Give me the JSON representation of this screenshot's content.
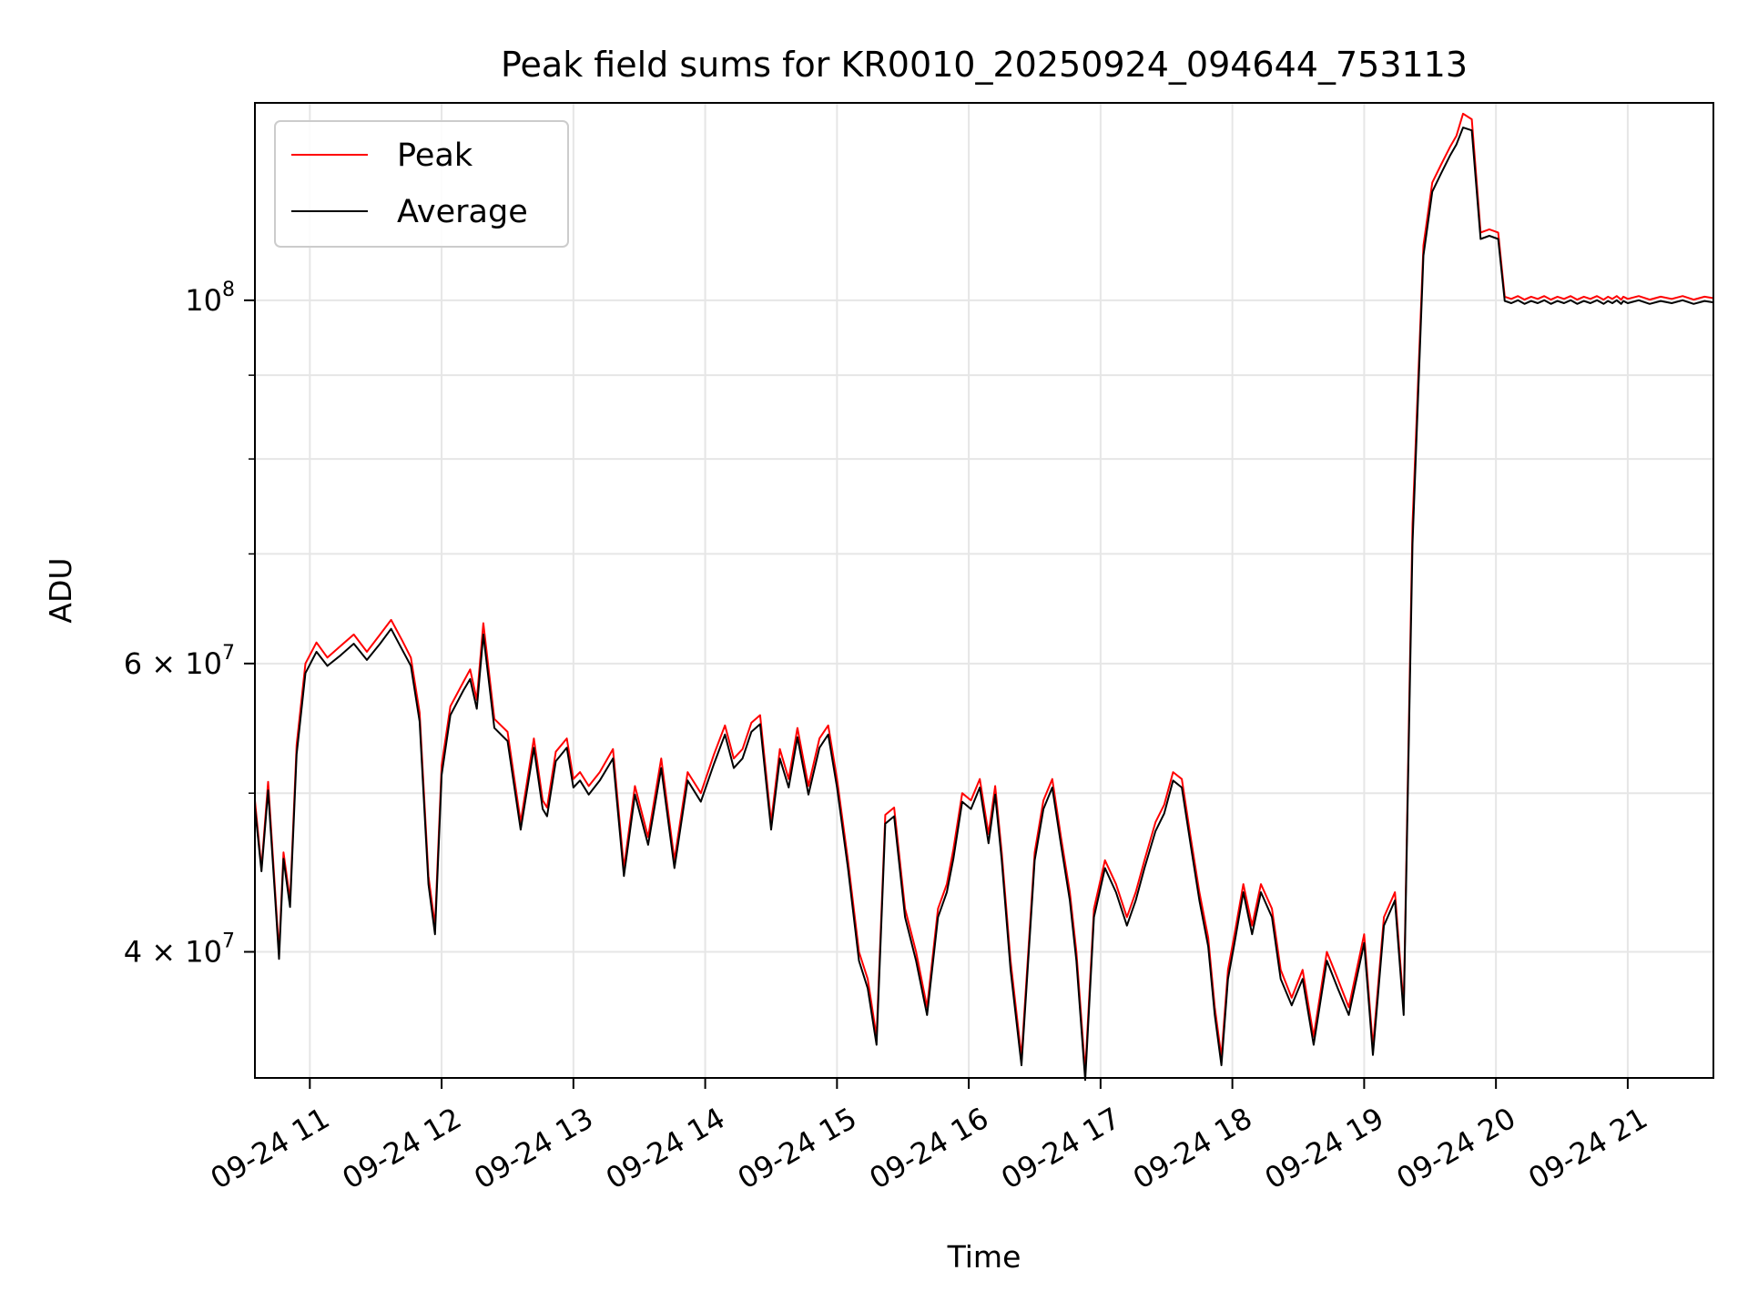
{
  "chart_data": {
    "type": "line",
    "title": "Peak field sums for KR0010_20250924_094644_753113",
    "xlabel": "Time",
    "ylabel": "ADU",
    "xlim": [
      "09-24 10:35",
      "09-24 21:39"
    ],
    "ylim": [
      33500000,
      132000000
    ],
    "yscale": "log",
    "grid": true,
    "legend_position": "upper-left",
    "x_ticks": [
      "09-24 11",
      "09-24 12",
      "09-24 13",
      "09-24 14",
      "09-24 15",
      "09-24 16",
      "09-24 17",
      "09-24 18",
      "09-24 19",
      "09-24 20",
      "09-24 21"
    ],
    "y_ticks": [
      {
        "value": 40000000,
        "label": "4 × 10^7"
      },
      {
        "value": 60000000,
        "label": "6 × 10^7"
      },
      {
        "value": 100000000,
        "label": "10^8"
      }
    ],
    "series": [
      {
        "name": "Peak",
        "color": "#ff0000",
        "x": [
          "09-24 10:35",
          "09-24 10:38",
          "09-24 10:41",
          "09-24 10:44",
          "09-24 10:46",
          "09-24 10:48",
          "09-24 10:51",
          "09-24 10:54",
          "09-24 10:58",
          "09-24 11:03",
          "09-24 11:08",
          "09-24 11:14",
          "09-24 11:20",
          "09-24 11:26",
          "09-24 11:32",
          "09-24 11:37",
          "09-24 11:42",
          "09-24 11:46",
          "09-24 11:50",
          "09-24 11:54",
          "09-24 11:57",
          "09-24 12:00",
          "09-24 12:04",
          "09-24 12:07",
          "09-24 12:10",
          "09-24 12:13",
          "09-24 12:16",
          "09-24 12:19",
          "09-24 12:24",
          "09-24 12:30",
          "09-24 12:36",
          "09-24 12:42",
          "09-24 12:46",
          "09-24 12:48",
          "09-24 12:52",
          "09-24 12:57",
          "09-24 13:00",
          "09-24 13:03",
          "09-24 13:07",
          "09-24 13:12",
          "09-24 13:18",
          "09-24 13:23",
          "09-24 13:28",
          "09-24 13:34",
          "09-24 13:40",
          "09-24 13:46",
          "09-24 13:52",
          "09-24 13:58",
          "09-24 14:04",
          "09-24 14:09",
          "09-24 14:13",
          "09-24 14:17",
          "09-24 14:21",
          "09-24 14:25",
          "09-24 14:30",
          "09-24 14:34",
          "09-24 14:38",
          "09-24 14:42",
          "09-24 14:47",
          "09-24 14:52",
          "09-24 14:56",
          "09-24 15:00",
          "09-24 15:05",
          "09-24 15:10",
          "09-24 15:14",
          "09-24 15:18",
          "09-24 15:22",
          "09-24 15:26",
          "09-24 15:31",
          "09-24 15:36",
          "09-24 15:41",
          "09-24 15:46",
          "09-24 15:50",
          "09-24 15:53",
          "09-24 15:57",
          "09-24 16:01",
          "09-24 16:05",
          "09-24 16:09",
          "09-24 16:12",
          "09-24 16:15",
          "09-24 16:19",
          "09-24 16:24",
          "09-24 16:30",
          "09-24 16:34",
          "09-24 16:38",
          "09-24 16:42",
          "09-24 16:46",
          "09-24 16:49",
          "09-24 16:53",
          "09-24 16:57",
          "09-24 17:02",
          "09-24 17:07",
          "09-24 17:12",
          "09-24 17:16",
          "09-24 17:20",
          "09-24 17:25",
          "09-24 17:29",
          "09-24 17:33",
          "09-24 17:37",
          "09-24 17:41",
          "09-24 17:45",
          "09-24 17:49",
          "09-24 17:52",
          "09-24 17:55",
          "09-24 17:58",
          "09-24 18:01",
          "09-24 18:05",
          "09-24 18:09",
          "09-24 18:13",
          "09-24 18:18",
          "09-24 18:22",
          "09-24 18:27",
          "09-24 18:32",
          "09-24 18:37",
          "09-24 18:43",
          "09-24 18:48",
          "09-24 18:53",
          "09-24 19:00",
          "09-24 19:04",
          "09-24 19:09",
          "09-24 19:14",
          "09-24 19:18",
          "09-24 19:22",
          "09-24 19:27",
          "09-24 19:31",
          "09-24 19:35",
          "09-24 19:39",
          "09-24 19:42",
          "09-24 19:45",
          "09-24 19:49",
          "09-24 19:53",
          "09-24 19:57",
          "09-24 20:01",
          "09-24 20:04",
          "09-24 20:07",
          "09-24 20:10",
          "09-24 20:13",
          "09-24 20:16",
          "09-24 20:19",
          "09-24 20:22",
          "09-24 20:25",
          "09-24 20:28",
          "09-24 20:31",
          "09-24 20:34",
          "09-24 20:37",
          "09-24 20:40",
          "09-24 20:43",
          "09-24 20:46",
          "09-24 20:49",
          "09-24 20:51",
          "09-24 20:53",
          "09-24 20:55",
          "09-24 20:57",
          "09-24 20:58",
          "09-24 21:00",
          "09-24 21:05",
          "09-24 21:10",
          "09-24 21:15",
          "09-24 21:20",
          "09-24 21:25",
          "09-24 21:30",
          "09-24 21:35",
          "09-24 21:39"
        ],
        "y": [
          49500000,
          45000000,
          50800000,
          44000000,
          40000000,
          46000000,
          43000000,
          53500000,
          60000000,
          61800000,
          60500000,
          61500000,
          62500000,
          61000000,
          62500000,
          63800000,
          62000000,
          60500000,
          56000000,
          44500000,
          41500000,
          52000000,
          56500000,
          57500000,
          58500000,
          59500000,
          57000000,
          63500000,
          55500000,
          54500000,
          48000000,
          54000000,
          49500000,
          49000000,
          53000000,
          54000000,
          51000000,
          51500000,
          50500000,
          51500000,
          53200000,
          45000000,
          50500000,
          47000000,
          52500000,
          45500000,
          51500000,
          50000000,
          52800000,
          55000000,
          52500000,
          53200000,
          55200000,
          55800000,
          48000000,
          53200000,
          51000000,
          54800000,
          50500000,
          54000000,
          55000000,
          51000000,
          45500000,
          40000000,
          38500000,
          35500000,
          48500000,
          49000000,
          42500000,
          40000000,
          37000000,
          42500000,
          44000000,
          46200000,
          50000000,
          49500000,
          51000000,
          47200000,
          50500000,
          46000000,
          39500000,
          34500000,
          46000000,
          49500000,
          51000000,
          47000000,
          43500000,
          40000000,
          33800000,
          42500000,
          45500000,
          44000000,
          42000000,
          43500000,
          45500000,
          48000000,
          49200000,
          51500000,
          51000000,
          47000000,
          43500000,
          40800000,
          37000000,
          34500000,
          39000000,
          41000000,
          44000000,
          41500000,
          44000000,
          42500000,
          39000000,
          37500000,
          39000000,
          35500000,
          40000000,
          38500000,
          37000000,
          41000000,
          35000000,
          42000000,
          43500000,
          37000000,
          73000000,
          108000000,
          118000000,
          121000000,
          124000000,
          126000000,
          130000000,
          129000000,
          110000000,
          110500000,
          110000000,
          100500000,
          100200000,
          100600000,
          100100000,
          100500000,
          100200000,
          100600000,
          100100000,
          100500000,
          100200000,
          100600000,
          100100000,
          100500000,
          100200000,
          100600000,
          100100000,
          100500000,
          100200000,
          100600000,
          100100000,
          100500000,
          100200000,
          100600000,
          100100000,
          100500000,
          100200000,
          100600000,
          100100000,
          100500000,
          100300000
        ]
      },
      {
        "name": "Average",
        "color": "#000000",
        "x": [
          "09-24 10:35",
          "09-24 10:38",
          "09-24 10:41",
          "09-24 10:44",
          "09-24 10:46",
          "09-24 10:48",
          "09-24 10:51",
          "09-24 10:54",
          "09-24 10:58",
          "09-24 11:03",
          "09-24 11:08",
          "09-24 11:14",
          "09-24 11:20",
          "09-24 11:26",
          "09-24 11:32",
          "09-24 11:37",
          "09-24 11:42",
          "09-24 11:46",
          "09-24 11:50",
          "09-24 11:54",
          "09-24 11:57",
          "09-24 12:00",
          "09-24 12:04",
          "09-24 12:07",
          "09-24 12:10",
          "09-24 12:13",
          "09-24 12:16",
          "09-24 12:19",
          "09-24 12:24",
          "09-24 12:30",
          "09-24 12:36",
          "09-24 12:42",
          "09-24 12:46",
          "09-24 12:48",
          "09-24 12:52",
          "09-24 12:57",
          "09-24 13:00",
          "09-24 13:03",
          "09-24 13:07",
          "09-24 13:12",
          "09-24 13:18",
          "09-24 13:23",
          "09-24 13:28",
          "09-24 13:34",
          "09-24 13:40",
          "09-24 13:46",
          "09-24 13:52",
          "09-24 13:58",
          "09-24 14:04",
          "09-24 14:09",
          "09-24 14:13",
          "09-24 14:17",
          "09-24 14:21",
          "09-24 14:25",
          "09-24 14:30",
          "09-24 14:34",
          "09-24 14:38",
          "09-24 14:42",
          "09-24 14:47",
          "09-24 14:52",
          "09-24 14:56",
          "09-24 15:00",
          "09-24 15:05",
          "09-24 15:10",
          "09-24 15:14",
          "09-24 15:18",
          "09-24 15:22",
          "09-24 15:26",
          "09-24 15:31",
          "09-24 15:36",
          "09-24 15:41",
          "09-24 15:46",
          "09-24 15:50",
          "09-24 15:53",
          "09-24 15:57",
          "09-24 16:01",
          "09-24 16:05",
          "09-24 16:09",
          "09-24 16:12",
          "09-24 16:15",
          "09-24 16:19",
          "09-24 16:24",
          "09-24 16:30",
          "09-24 16:34",
          "09-24 16:38",
          "09-24 16:42",
          "09-24 16:46",
          "09-24 16:49",
          "09-24 16:53",
          "09-24 16:57",
          "09-24 17:02",
          "09-24 17:07",
          "09-24 17:12",
          "09-24 17:16",
          "09-24 17:20",
          "09-24 17:25",
          "09-24 17:29",
          "09-24 17:33",
          "09-24 17:37",
          "09-24 17:41",
          "09-24 17:45",
          "09-24 17:49",
          "09-24 17:52",
          "09-24 17:55",
          "09-24 17:58",
          "09-24 18:01",
          "09-24 18:05",
          "09-24 18:09",
          "09-24 18:13",
          "09-24 18:18",
          "09-24 18:22",
          "09-24 18:27",
          "09-24 18:32",
          "09-24 18:37",
          "09-24 18:43",
          "09-24 18:48",
          "09-24 18:53",
          "09-24 19:00",
          "09-24 19:04",
          "09-24 19:09",
          "09-24 19:14",
          "09-24 19:18",
          "09-24 19:22",
          "09-24 19:27",
          "09-24 19:31",
          "09-24 19:35",
          "09-24 19:39",
          "09-24 19:42",
          "09-24 19:45",
          "09-24 19:49",
          "09-24 19:53",
          "09-24 19:57",
          "09-24 20:01",
          "09-24 20:04",
          "09-24 20:07",
          "09-24 20:10",
          "09-24 20:13",
          "09-24 20:16",
          "09-24 20:19",
          "09-24 20:22",
          "09-24 20:25",
          "09-24 20:28",
          "09-24 20:31",
          "09-24 20:34",
          "09-24 20:37",
          "09-24 20:40",
          "09-24 20:43",
          "09-24 20:46",
          "09-24 20:49",
          "09-24 20:51",
          "09-24 20:53",
          "09-24 20:55",
          "09-24 20:57",
          "09-24 20:58",
          "09-24 21:00",
          "09-24 21:05",
          "09-24 21:10",
          "09-24 21:15",
          "09-24 21:20",
          "09-24 21:25",
          "09-24 21:30",
          "09-24 21:35",
          "09-24 21:39"
        ],
        "y": [
          49000000,
          44800000,
          50200000,
          43600000,
          39600000,
          45600000,
          42600000,
          52800000,
          59200000,
          61000000,
          59800000,
          60700000,
          61700000,
          60300000,
          61700000,
          63000000,
          61200000,
          59800000,
          55300000,
          44000000,
          41000000,
          51300000,
          55800000,
          56800000,
          57800000,
          58700000,
          56300000,
          62500000,
          54800000,
          53800000,
          47500000,
          53300000,
          48900000,
          48400000,
          52300000,
          53300000,
          50400000,
          50900000,
          49900000,
          50900000,
          52500000,
          44500000,
          49900000,
          46500000,
          51800000,
          45000000,
          50900000,
          49400000,
          52100000,
          54300000,
          51800000,
          52500000,
          54500000,
          55100000,
          47500000,
          52500000,
          50400000,
          54100000,
          49900000,
          53300000,
          54300000,
          50400000,
          45000000,
          39500000,
          38000000,
          35100000,
          47900000,
          48400000,
          42000000,
          39500000,
          36600000,
          42000000,
          43500000,
          45600000,
          49400000,
          48900000,
          50400000,
          46600000,
          49900000,
          45500000,
          39000000,
          34100000,
          45500000,
          48900000,
          50400000,
          46500000,
          43000000,
          39500000,
          33400000,
          42000000,
          45000000,
          43500000,
          41500000,
          43000000,
          45000000,
          47400000,
          48600000,
          50900000,
          50400000,
          46500000,
          43000000,
          40300000,
          36600000,
          34100000,
          38500000,
          40500000,
          43500000,
          41000000,
          43500000,
          42000000,
          38500000,
          37100000,
          38500000,
          35100000,
          39500000,
          38000000,
          36600000,
          40500000,
          34600000,
          41500000,
          43000000,
          36600000,
          71000000,
          106500000,
          116500000,
          119500000,
          122500000,
          124500000,
          127500000,
          127000000,
          109000000,
          109500000,
          109000000,
          99900000,
          99600000,
          100000000,
          99500000,
          99900000,
          99600000,
          100000000,
          99500000,
          99900000,
          99600000,
          100000000,
          99500000,
          99900000,
          99600000,
          100000000,
          99500000,
          99900000,
          99600000,
          100000000,
          99500000,
          99900000,
          99600000,
          100000000,
          99500000,
          99900000,
          99600000,
          100000000,
          99500000,
          99900000,
          99700000
        ]
      }
    ]
  }
}
